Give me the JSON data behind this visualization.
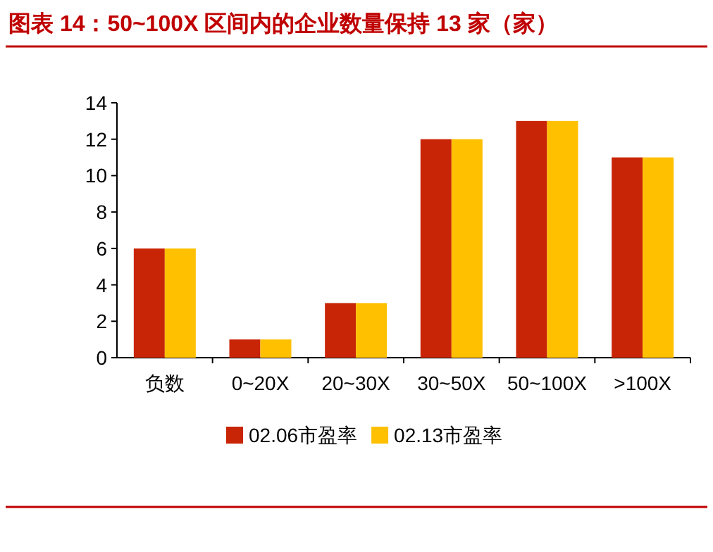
{
  "chart_data": {
    "type": "bar",
    "title": "图表 14：50~100X 区间内的企业数量保持 13 家（家）",
    "categories": [
      "负数",
      "0~20X",
      "20~30X",
      "30~50X",
      "50~100X",
      ">100X"
    ],
    "series": [
      {
        "name": "02.06市盈率",
        "color": "#c82506",
        "values": [
          6,
          1,
          3,
          12,
          13,
          11
        ]
      },
      {
        "name": "02.13市盈率",
        "color": "#ffc000",
        "values": [
          6,
          1,
          3,
          12,
          13,
          11
        ]
      }
    ],
    "ylim": [
      0,
      14
    ],
    "yticks": [
      0,
      2,
      4,
      6,
      8,
      10,
      12,
      14
    ],
    "grid": false,
    "legend": "bottom"
  }
}
